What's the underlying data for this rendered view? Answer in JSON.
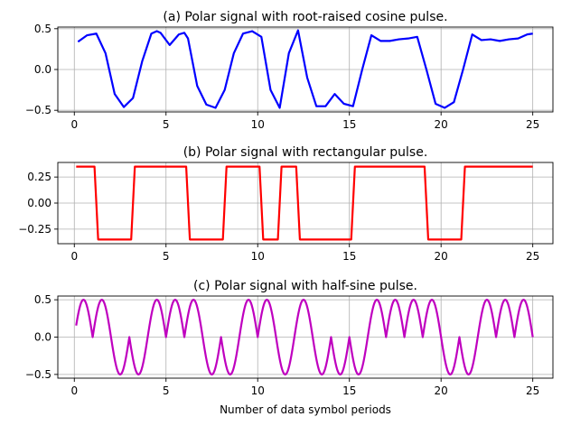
{
  "chart_data": [
    {
      "type": "line",
      "title": "(a) Polar signal with root-raised cosine pulse.",
      "xlim": [
        -0.9,
        26.1
      ],
      "ylim": [
        -0.52,
        0.52
      ],
      "xticks": [
        0,
        5,
        10,
        15,
        20,
        25
      ],
      "yticks": [
        0.5,
        0.0,
        -0.5
      ],
      "ytick_labels": [
        "0.5",
        "0.0",
        "−0.5"
      ],
      "grid": true,
      "color": "#0000ff",
      "series": [
        {
          "x": [
            0.2,
            0.7,
            1.2,
            1.7,
            2.2,
            2.7,
            3.2,
            3.7,
            4.2,
            4.5,
            4.7,
            5.2,
            5.7,
            6.0,
            6.2,
            6.7,
            7.2,
            7.7,
            8.2,
            8.7,
            9.2,
            9.7,
            10.2,
            10.7,
            11.2,
            11.7,
            12.2,
            12.7,
            13.2,
            13.7,
            14.2,
            14.7,
            15.2,
            15.7,
            16.2,
            16.7,
            17.2,
            17.7,
            18.2,
            18.7,
            19.2,
            19.7,
            20.2,
            20.7,
            21.2,
            21.7,
            22.2,
            22.7,
            23.2,
            23.7,
            24.2,
            24.7,
            25.0
          ],
          "y": [
            0.34,
            0.42,
            0.44,
            0.2,
            -0.3,
            -0.46,
            -0.35,
            0.1,
            0.44,
            0.47,
            0.45,
            0.3,
            0.43,
            0.45,
            0.38,
            -0.2,
            -0.43,
            -0.47,
            -0.25,
            0.2,
            0.44,
            0.47,
            0.4,
            -0.25,
            -0.47,
            0.2,
            0.48,
            -0.1,
            -0.45,
            -0.45,
            -0.3,
            -0.42,
            -0.45,
            0.0,
            0.42,
            0.35,
            0.35,
            0.37,
            0.38,
            0.4,
            0.0,
            -0.42,
            -0.47,
            -0.4,
            0.0,
            0.43,
            0.36,
            0.37,
            0.35,
            0.37,
            0.38,
            0.43,
            0.44
          ]
        }
      ]
    },
    {
      "type": "line",
      "title": "(b) Polar signal with rectangular pulse.",
      "xlim": [
        -0.9,
        26.1
      ],
      "ylim": [
        -0.39,
        0.39
      ],
      "xticks": [
        0,
        5,
        10,
        15,
        20,
        25
      ],
      "yticks": [
        0.25,
        0.0,
        -0.25
      ],
      "ytick_labels": [
        "0.25",
        "0.00",
        "−0.25"
      ],
      "grid": true,
      "color": "#ff0000",
      "series": [
        {
          "x": [
            0.1,
            1.1,
            1.3,
            3.1,
            3.3,
            6.1,
            6.3,
            8.1,
            8.3,
            10.1,
            10.3,
            11.1,
            11.3,
            12.1,
            12.3,
            15.1,
            15.3,
            19.1,
            19.3,
            21.1,
            21.3,
            25.0
          ],
          "y": [
            0.35,
            0.35,
            -0.35,
            -0.35,
            0.35,
            0.35,
            -0.35,
            -0.35,
            0.35,
            0.35,
            -0.35,
            -0.35,
            0.35,
            0.35,
            -0.35,
            -0.35,
            0.35,
            0.35,
            -0.35,
            -0.35,
            0.35,
            0.35
          ]
        }
      ]
    },
    {
      "type": "line",
      "title": "(c) Polar signal with half-sine pulse.",
      "xlabel": "Number of data symbol periods",
      "xlim": [
        -0.9,
        26.1
      ],
      "ylim": [
        -0.55,
        0.55
      ],
      "xticks": [
        0,
        5,
        10,
        15,
        20,
        25
      ],
      "yticks": [
        0.5,
        0.0,
        -0.5
      ],
      "ytick_labels": [
        "0.5",
        "0.0",
        "−0.5"
      ],
      "grid": true,
      "color": "#bf00bf",
      "bits": [
        1,
        1,
        -1,
        -1,
        1,
        1,
        1,
        -1,
        -1,
        1,
        1,
        -1,
        1,
        -1,
        -1,
        -1,
        1,
        1,
        1,
        1,
        -1,
        -1,
        1,
        1,
        1
      ],
      "amplitude": 0.5,
      "x_range": [
        0.1,
        25.0
      ]
    }
  ]
}
